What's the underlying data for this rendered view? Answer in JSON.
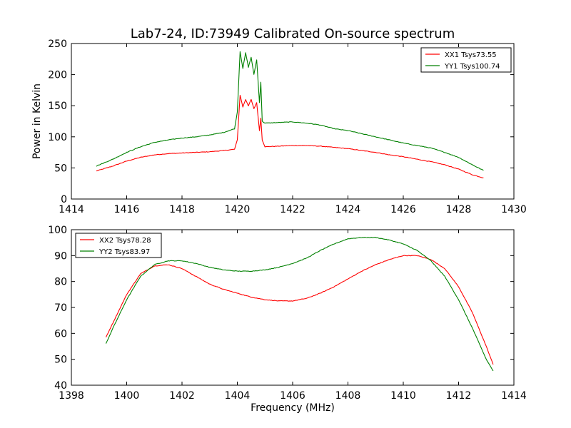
{
  "title": "Lab7-24, ID:73949 Calibrated On-source spectrum",
  "colors": {
    "red": "#ff0000",
    "green": "#008000"
  },
  "chart_data": [
    {
      "type": "line",
      "xlabel": "",
      "ylabel": "Power in Kelvin",
      "xlim": [
        1414,
        1430
      ],
      "ylim": [
        0,
        250
      ],
      "xticks": [
        "1414",
        "1416",
        "1418",
        "1420",
        "1422",
        "1424",
        "1426",
        "1428",
        "1430"
      ],
      "yticks": [
        "0",
        "50",
        "100",
        "150",
        "200",
        "250"
      ],
      "legend": "top-right",
      "series": [
        {
          "name": "XX1 Tsys73.55",
          "color": "#ff0000",
          "points": [
            [
              1414.9,
              45
            ],
            [
              1415.5,
              53
            ],
            [
              1416,
              61
            ],
            [
              1416.5,
              67
            ],
            [
              1417,
              71
            ],
            [
              1417.5,
              73
            ],
            [
              1418,
              74
            ],
            [
              1418.5,
              75
            ],
            [
              1419,
              76
            ],
            [
              1419.5,
              78
            ],
            [
              1419.9,
              80
            ],
            [
              1420.0,
              95
            ],
            [
              1420.1,
              167
            ],
            [
              1420.2,
              148
            ],
            [
              1420.3,
              160
            ],
            [
              1420.4,
              150
            ],
            [
              1420.5,
              160
            ],
            [
              1420.6,
              145
            ],
            [
              1420.7,
              155
            ],
            [
              1420.8,
              110
            ],
            [
              1420.85,
              130
            ],
            [
              1420.9,
              95
            ],
            [
              1421.0,
              84
            ],
            [
              1421.5,
              85
            ],
            [
              1422,
              86
            ],
            [
              1422.5,
              86
            ],
            [
              1423,
              85
            ],
            [
              1423.5,
              83
            ],
            [
              1424,
              81
            ],
            [
              1424.5,
              78
            ],
            [
              1425,
              75
            ],
            [
              1425.5,
              71
            ],
            [
              1426,
              68
            ],
            [
              1426.5,
              64
            ],
            [
              1427,
              60
            ],
            [
              1427.5,
              55
            ],
            [
              1428,
              48
            ],
            [
              1428.5,
              39
            ],
            [
              1428.9,
              34
            ]
          ]
        },
        {
          "name": "YY1 Tsys100.74",
          "color": "#008000",
          "points": [
            [
              1414.9,
              53
            ],
            [
              1415.5,
              64
            ],
            [
              1416,
              75
            ],
            [
              1416.5,
              84
            ],
            [
              1417,
              91
            ],
            [
              1417.5,
              95
            ],
            [
              1418,
              98
            ],
            [
              1418.5,
              100
            ],
            [
              1419,
              103
            ],
            [
              1419.5,
              107
            ],
            [
              1419.9,
              113
            ],
            [
              1420.0,
              140
            ],
            [
              1420.1,
              237
            ],
            [
              1420.2,
              210
            ],
            [
              1420.3,
              235
            ],
            [
              1420.4,
              212
            ],
            [
              1420.5,
              228
            ],
            [
              1420.6,
              200
            ],
            [
              1420.7,
              224
            ],
            [
              1420.8,
              155
            ],
            [
              1420.85,
              188
            ],
            [
              1420.9,
              125
            ],
            [
              1421.0,
              122
            ],
            [
              1421.5,
              123
            ],
            [
              1422,
              124
            ],
            [
              1422.5,
              122
            ],
            [
              1423,
              119
            ],
            [
              1423.5,
              113
            ],
            [
              1424,
              110
            ],
            [
              1424.5,
              105
            ],
            [
              1425,
              100
            ],
            [
              1425.5,
              95
            ],
            [
              1426,
              90
            ],
            [
              1426.5,
              86
            ],
            [
              1427,
              82
            ],
            [
              1427.5,
              75
            ],
            [
              1428,
              67
            ],
            [
              1428.5,
              55
            ],
            [
              1428.9,
              46
            ]
          ]
        }
      ]
    },
    {
      "type": "line",
      "xlabel": "Frequency (MHz)",
      "ylabel": "",
      "xlim": [
        1398,
        1414
      ],
      "ylim": [
        40,
        100
      ],
      "xticks": [
        "1398",
        "1400",
        "1402",
        "1404",
        "1406",
        "1408",
        "1410",
        "1412",
        "1414"
      ],
      "yticks": [
        "40",
        "50",
        "60",
        "70",
        "80",
        "90",
        "100"
      ],
      "legend": "top-left",
      "series": [
        {
          "name": "XX2 Tsys78.28",
          "color": "#ff0000",
          "points": [
            [
              1399.25,
              58.5
            ],
            [
              1399.5,
              64
            ],
            [
              1400,
              75
            ],
            [
              1400.5,
              83
            ],
            [
              1401,
              86
            ],
            [
              1401.5,
              86.5
            ],
            [
              1402,
              85
            ],
            [
              1402.5,
              82
            ],
            [
              1403,
              79
            ],
            [
              1403.5,
              77
            ],
            [
              1404,
              75.5
            ],
            [
              1404.5,
              74
            ],
            [
              1405,
              73
            ],
            [
              1405.5,
              72.5
            ],
            [
              1406,
              72.5
            ],
            [
              1406.5,
              73.5
            ],
            [
              1407,
              75.5
            ],
            [
              1407.5,
              78
            ],
            [
              1408,
              81
            ],
            [
              1408.5,
              84
            ],
            [
              1409,
              86.5
            ],
            [
              1409.5,
              88.5
            ],
            [
              1410,
              90
            ],
            [
              1410.5,
              90
            ],
            [
              1411,
              88.5
            ],
            [
              1411.5,
              85
            ],
            [
              1412,
              78
            ],
            [
              1412.5,
              68
            ],
            [
              1413,
              55
            ],
            [
              1413.25,
              48
            ]
          ]
        },
        {
          "name": "YY2 Tsys83.97",
          "color": "#008000",
          "points": [
            [
              1399.25,
              56
            ],
            [
              1399.5,
              62
            ],
            [
              1400,
              73
            ],
            [
              1400.5,
              82
            ],
            [
              1401,
              86.5
            ],
            [
              1401.5,
              88
            ],
            [
              1402,
              88
            ],
            [
              1402.5,
              87
            ],
            [
              1403,
              85.5
            ],
            [
              1403.5,
              84.5
            ],
            [
              1404,
              84
            ],
            [
              1404.5,
              84
            ],
            [
              1405,
              84.5
            ],
            [
              1405.5,
              85.5
            ],
            [
              1406,
              87
            ],
            [
              1406.5,
              89
            ],
            [
              1407,
              92
            ],
            [
              1407.5,
              94.5
            ],
            [
              1408,
              96.5
            ],
            [
              1408.5,
              97
            ],
            [
              1409,
              97
            ],
            [
              1409.5,
              96
            ],
            [
              1410,
              94.5
            ],
            [
              1410.5,
              92
            ],
            [
              1411,
              88
            ],
            [
              1411.5,
              82
            ],
            [
              1412,
              73
            ],
            [
              1412.5,
              62
            ],
            [
              1413,
              50
            ],
            [
              1413.25,
              45.5
            ]
          ]
        }
      ]
    }
  ]
}
